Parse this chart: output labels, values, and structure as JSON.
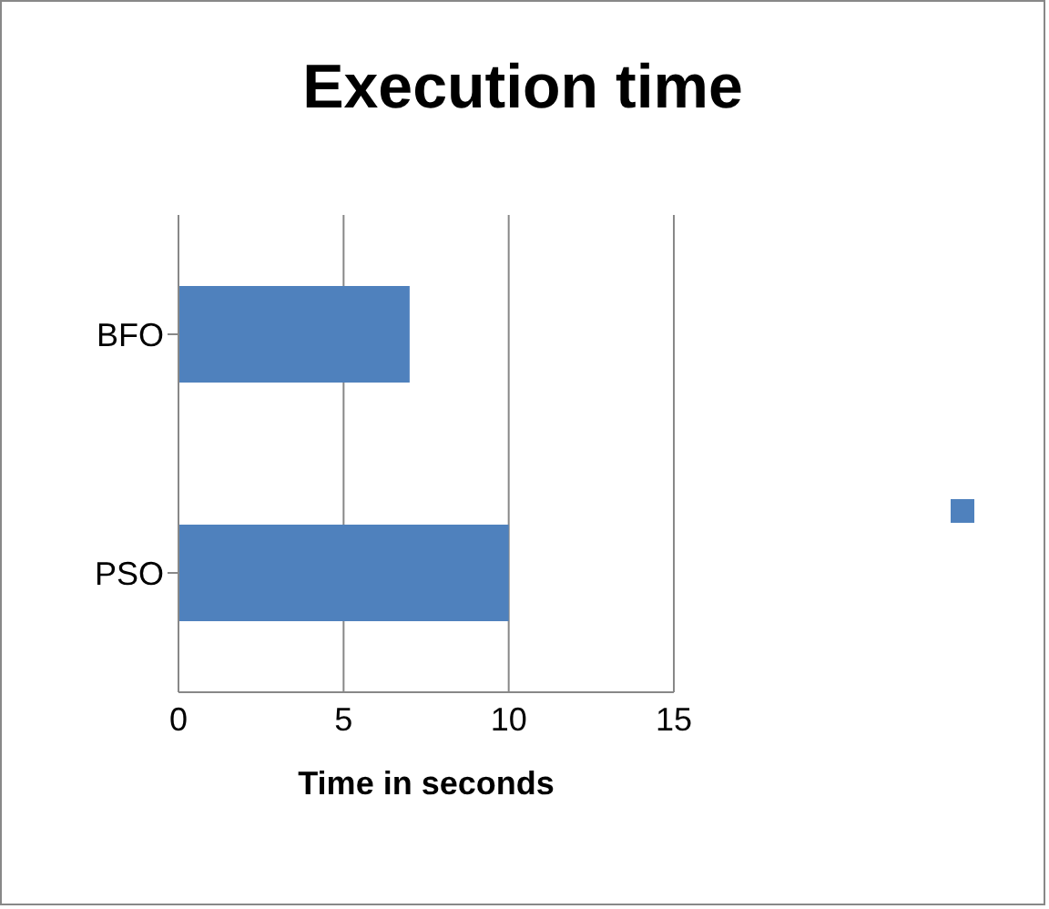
{
  "chart_data": {
    "type": "bar",
    "orientation": "horizontal",
    "title": "Execution time",
    "xlabel": "Time in seconds",
    "categories": [
      "BFO",
      "PSO"
    ],
    "series": [
      {
        "color": "#4f81bd",
        "values": [
          7,
          10
        ]
      }
    ],
    "xlim": [
      0,
      15
    ],
    "xticks": [
      0,
      5,
      10,
      15
    ],
    "grid": "x"
  }
}
